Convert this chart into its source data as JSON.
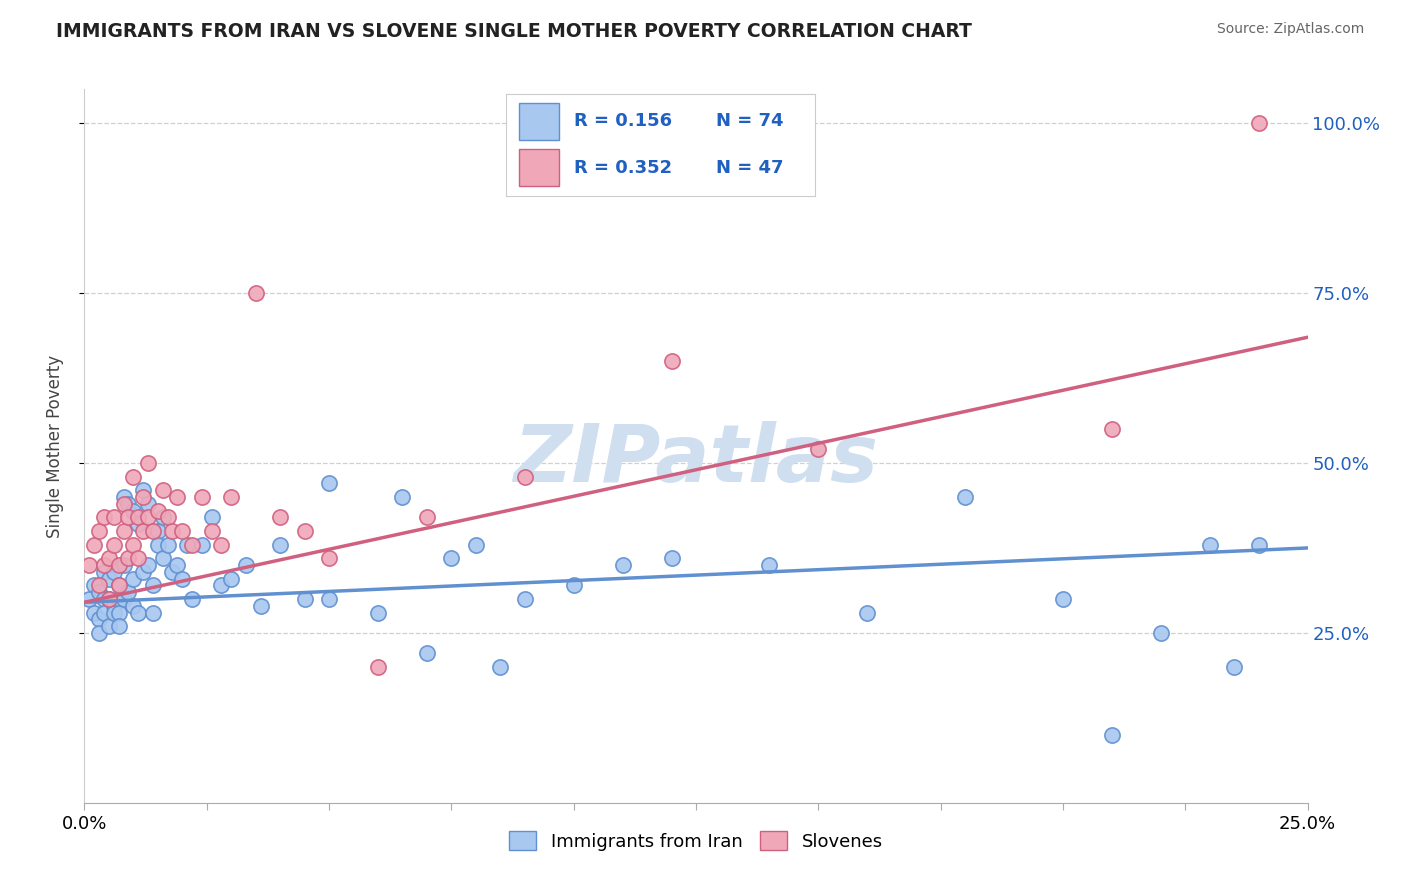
{
  "title": "IMMIGRANTS FROM IRAN VS SLOVENE SINGLE MOTHER POVERTY CORRELATION CHART",
  "source": "Source: ZipAtlas.com",
  "ylabel": "Single Mother Poverty",
  "x_min": 0.0,
  "x_max": 0.25,
  "y_min": 0.0,
  "y_max": 1.05,
  "y_ticks": [
    0.25,
    0.5,
    0.75,
    1.0
  ],
  "y_tick_labels": [
    "25.0%",
    "50.0%",
    "75.0%",
    "100.0%"
  ],
  "legend_r1": "R = 0.156",
  "legend_n1": "N = 74",
  "legend_r2": "R = 0.352",
  "legend_n2": "N = 47",
  "color_blue": "#a8c8f0",
  "color_pink": "#f0a8b8",
  "color_blue_edge": "#6090d0",
  "color_pink_edge": "#d06080",
  "legend_r_color": "#2060c0",
  "watermark_color": "#d0dff0",
  "background_color": "#ffffff",
  "grid_color": "#d0d0d0",
  "blue_scatter_x": [
    0.001,
    0.002,
    0.002,
    0.003,
    0.003,
    0.003,
    0.004,
    0.004,
    0.004,
    0.005,
    0.005,
    0.005,
    0.006,
    0.006,
    0.006,
    0.007,
    0.007,
    0.007,
    0.007,
    0.008,
    0.008,
    0.008,
    0.009,
    0.009,
    0.01,
    0.01,
    0.01,
    0.011,
    0.011,
    0.012,
    0.012,
    0.013,
    0.013,
    0.014,
    0.014,
    0.015,
    0.015,
    0.016,
    0.016,
    0.017,
    0.018,
    0.019,
    0.02,
    0.021,
    0.022,
    0.024,
    0.026,
    0.028,
    0.03,
    0.033,
    0.036,
    0.04,
    0.045,
    0.05,
    0.06,
    0.07,
    0.08,
    0.09,
    0.1,
    0.11,
    0.12,
    0.14,
    0.16,
    0.18,
    0.2,
    0.21,
    0.22,
    0.23,
    0.235,
    0.24,
    0.05,
    0.065,
    0.075,
    0.085
  ],
  "blue_scatter_y": [
    0.3,
    0.32,
    0.28,
    0.27,
    0.31,
    0.25,
    0.3,
    0.34,
    0.28,
    0.3,
    0.33,
    0.26,
    0.29,
    0.34,
    0.28,
    0.32,
    0.3,
    0.28,
    0.26,
    0.35,
    0.3,
    0.45,
    0.31,
    0.44,
    0.33,
    0.29,
    0.43,
    0.28,
    0.41,
    0.34,
    0.46,
    0.35,
    0.44,
    0.32,
    0.28,
    0.4,
    0.38,
    0.42,
    0.36,
    0.38,
    0.34,
    0.35,
    0.33,
    0.38,
    0.3,
    0.38,
    0.42,
    0.32,
    0.33,
    0.35,
    0.29,
    0.38,
    0.3,
    0.3,
    0.28,
    0.22,
    0.38,
    0.3,
    0.32,
    0.35,
    0.36,
    0.35,
    0.28,
    0.45,
    0.3,
    0.1,
    0.25,
    0.38,
    0.2,
    0.38,
    0.47,
    0.45,
    0.36,
    0.2
  ],
  "pink_scatter_x": [
    0.001,
    0.002,
    0.003,
    0.003,
    0.004,
    0.004,
    0.005,
    0.005,
    0.006,
    0.006,
    0.007,
    0.007,
    0.008,
    0.008,
    0.009,
    0.009,
    0.01,
    0.01,
    0.011,
    0.011,
    0.012,
    0.012,
    0.013,
    0.013,
    0.014,
    0.015,
    0.016,
    0.017,
    0.018,
    0.019,
    0.02,
    0.022,
    0.024,
    0.026,
    0.028,
    0.03,
    0.035,
    0.04,
    0.045,
    0.05,
    0.06,
    0.07,
    0.09,
    0.12,
    0.15,
    0.21,
    0.24
  ],
  "pink_scatter_y": [
    0.35,
    0.38,
    0.32,
    0.4,
    0.35,
    0.42,
    0.36,
    0.3,
    0.38,
    0.42,
    0.35,
    0.32,
    0.4,
    0.44,
    0.36,
    0.42,
    0.48,
    0.38,
    0.42,
    0.36,
    0.4,
    0.45,
    0.42,
    0.5,
    0.4,
    0.43,
    0.46,
    0.42,
    0.4,
    0.45,
    0.4,
    0.38,
    0.45,
    0.4,
    0.38,
    0.45,
    0.75,
    0.42,
    0.4,
    0.36,
    0.2,
    0.42,
    0.48,
    0.65,
    0.52,
    0.55,
    1.0
  ],
  "blue_line_x": [
    0.0,
    0.25
  ],
  "blue_line_y": [
    0.295,
    0.375
  ],
  "pink_line_x": [
    0.0,
    0.25
  ],
  "pink_line_y": [
    0.295,
    0.685
  ],
  "x_ticks": [
    0.0,
    0.025,
    0.05,
    0.075,
    0.1,
    0.125,
    0.15,
    0.175,
    0.2,
    0.225,
    0.25
  ]
}
